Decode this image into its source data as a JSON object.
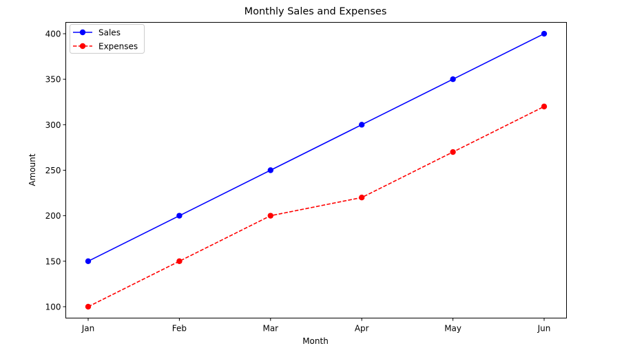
{
  "chart_data": {
    "type": "line",
    "title": "Monthly Sales and Expenses",
    "xlabel": "Month",
    "ylabel": "Amount",
    "categories": [
      "Jan",
      "Feb",
      "Mar",
      "Apr",
      "May",
      "Jun"
    ],
    "series": [
      {
        "name": "Sales",
        "values": [
          150,
          200,
          250,
          300,
          350,
          400
        ],
        "color": "#0000ff",
        "line_style": "solid",
        "marker": "circle"
      },
      {
        "name": "Expenses",
        "values": [
          100,
          150,
          200,
          220,
          270,
          320
        ],
        "color": "#ff0000",
        "line_style": "dashed",
        "marker": "circle"
      }
    ],
    "ylim": [
      87.5,
      412.5
    ],
    "yticks": [
      100,
      150,
      200,
      250,
      300,
      350,
      400
    ],
    "grid": false,
    "legend_position": "top-left"
  }
}
